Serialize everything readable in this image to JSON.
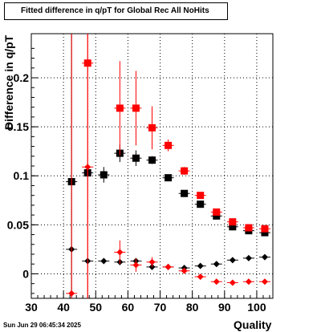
{
  "title": "Fitted difference in q/pT for Global Rec All NoHits",
  "timestamp": "Sun Jun 29 06:45:34 2025",
  "colors": {
    "black_series": "#000000",
    "red_series": "#ff0000"
  },
  "chart_data": {
    "type": "scatter",
    "title": "Fitted difference in q/pT for Global Rec All NoHits",
    "xlabel": "Quality",
    "ylabel": "Difference in q/pT",
    "xlim": [
      30,
      105
    ],
    "ylim": [
      -0.025,
      0.245
    ],
    "grid": true,
    "x_ticks": [
      "30",
      "40",
      "50",
      "60",
      "70",
      "80",
      "90",
      "100"
    ],
    "y_ticks": [
      "0",
      "0.05",
      "0.1",
      "0.15",
      "0.2"
    ],
    "series": [
      {
        "marker": "square",
        "color": "#000000",
        "points": [
          {
            "x": 42.5,
            "y": 0.094,
            "err": 0.0
          },
          {
            "x": 47.5,
            "y": 0.103,
            "err": 0.003
          },
          {
            "x": 52.5,
            "y": 0.101,
            "err": 0.008
          },
          {
            "x": 57.5,
            "y": 0.123,
            "err": 0.009
          },
          {
            "x": 62.5,
            "y": 0.118,
            "err": 0.008
          },
          {
            "x": 67.5,
            "y": 0.116,
            "err": 0.004
          },
          {
            "x": 72.5,
            "y": 0.098,
            "err": 0.002
          },
          {
            "x": 77.5,
            "y": 0.082,
            "err": 0.002
          },
          {
            "x": 82.5,
            "y": 0.071,
            "err": 0.002
          },
          {
            "x": 87.5,
            "y": 0.059,
            "err": 0.002
          },
          {
            "x": 92.5,
            "y": 0.048,
            "err": 0.002
          },
          {
            "x": 97.5,
            "y": 0.044,
            "err": 0.002
          },
          {
            "x": 102.5,
            "y": 0.042,
            "err": 0.002
          }
        ]
      },
      {
        "marker": "square",
        "color": "#ff0000",
        "points": [
          {
            "x": 47.5,
            "y": 0.215,
            "err": 0.3
          },
          {
            "x": 57.5,
            "y": 0.169,
            "err": 0.048
          },
          {
            "x": 62.5,
            "y": 0.169,
            "err": 0.038
          },
          {
            "x": 67.5,
            "y": 0.149,
            "err": 0.022
          },
          {
            "x": 72.5,
            "y": 0.131,
            "err": 0.006
          },
          {
            "x": 77.5,
            "y": 0.105,
            "err": 0.004
          },
          {
            "x": 82.5,
            "y": 0.08,
            "err": 0.003
          },
          {
            "x": 87.5,
            "y": 0.063,
            "err": 0.002
          },
          {
            "x": 92.5,
            "y": 0.053,
            "err": 0.002
          },
          {
            "x": 97.5,
            "y": 0.047,
            "err": 0.002
          },
          {
            "x": 102.5,
            "y": 0.046,
            "err": 0.002
          }
        ]
      },
      {
        "marker": "diamond",
        "color": "#000000",
        "points": [
          {
            "x": 42.5,
            "y": 0.025,
            "err": 0.3
          },
          {
            "x": 47.5,
            "y": 0.013,
            "err": 0.0
          },
          {
            "x": 52.5,
            "y": 0.013,
            "err": 0.0
          },
          {
            "x": 57.5,
            "y": 0.012,
            "err": 0.003
          },
          {
            "x": 62.5,
            "y": 0.013,
            "err": 0.003
          },
          {
            "x": 67.5,
            "y": 0.007,
            "err": 0.002
          },
          {
            "x": 72.5,
            "y": 0.007,
            "err": 0.0
          },
          {
            "x": 77.5,
            "y": 0.006,
            "err": 0.0
          },
          {
            "x": 82.5,
            "y": 0.008,
            "err": 0.0
          },
          {
            "x": 87.5,
            "y": 0.01,
            "err": 0.0
          },
          {
            "x": 92.5,
            "y": 0.014,
            "err": 0.0
          },
          {
            "x": 97.5,
            "y": 0.016,
            "err": 0.0
          },
          {
            "x": 102.5,
            "y": 0.017,
            "err": 0.0
          }
        ]
      },
      {
        "marker": "diamond",
        "color": "#ff0000",
        "points": [
          {
            "x": 42.5,
            "y": -0.02,
            "err": 0.3
          },
          {
            "x": 47.5,
            "y": 0.109,
            "err": 0.3
          },
          {
            "x": 57.5,
            "y": 0.022,
            "err": 0.012
          },
          {
            "x": 62.5,
            "y": 0.009,
            "err": 0.007
          },
          {
            "x": 67.5,
            "y": 0.012,
            "err": 0.005
          },
          {
            "x": 72.5,
            "y": 0.007,
            "err": 0.0
          },
          {
            "x": 77.5,
            "y": 0.003,
            "err": 0.0
          },
          {
            "x": 82.5,
            "y": -0.003,
            "err": 0.0
          },
          {
            "x": 87.5,
            "y": -0.008,
            "err": 0.0
          },
          {
            "x": 92.5,
            "y": -0.009,
            "err": 0.0
          },
          {
            "x": 97.5,
            "y": -0.008,
            "err": 0.0
          },
          {
            "x": 102.5,
            "y": -0.008,
            "err": 0.0
          }
        ]
      }
    ]
  }
}
